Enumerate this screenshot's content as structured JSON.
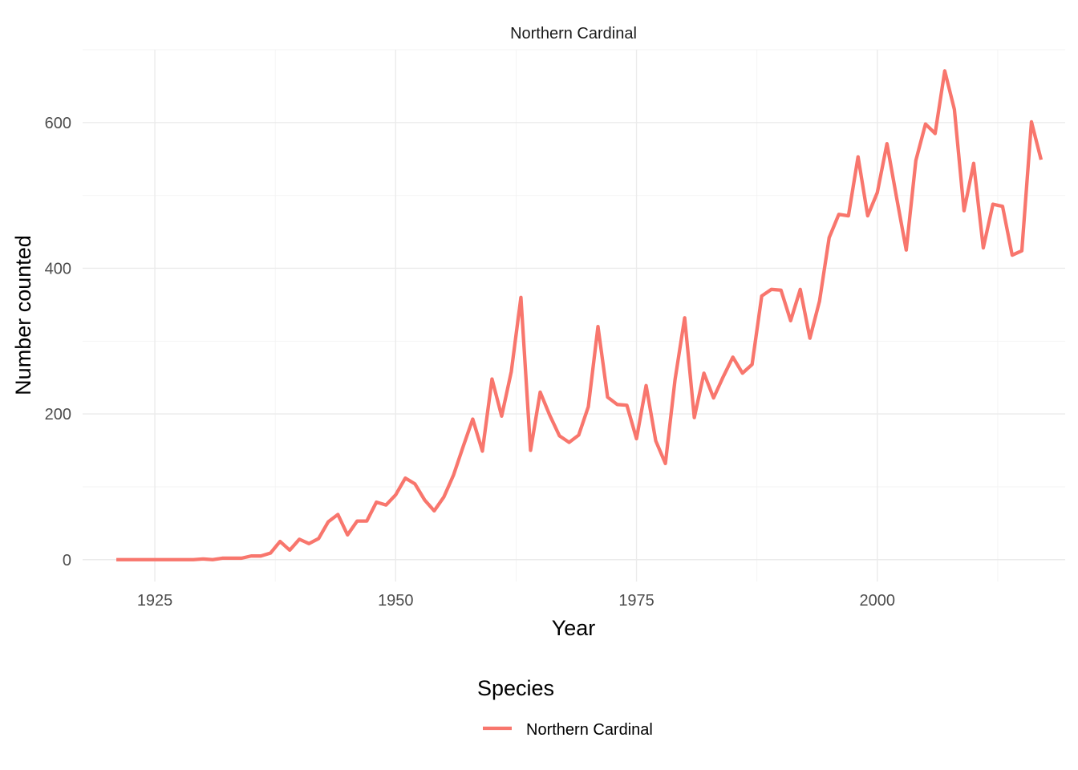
{
  "chart_data": {
    "type": "line",
    "facet_title": "Northern Cardinal",
    "xlabel": "Year",
    "ylabel": "Number counted",
    "xlim": [
      1917.5,
      2019.5
    ],
    "ylim": [
      -30,
      700
    ],
    "x_ticks": [
      1925,
      1950,
      1975,
      2000
    ],
    "y_ticks": [
      0,
      200,
      400,
      600
    ],
    "x_minor": [
      1937.5,
      1962.5,
      1987.5,
      2012.5
    ],
    "y_minor": [
      100,
      300,
      500,
      700
    ],
    "grid": true,
    "legend": {
      "title": "Species",
      "position": "bottom"
    },
    "colors": {
      "line": "#F8766D",
      "grid": "#EBEBEB",
      "text": "#4D4D4D"
    },
    "series": [
      {
        "name": "Northern Cardinal",
        "x": [
          1921,
          1922,
          1923,
          1924,
          1925,
          1926,
          1927,
          1928,
          1929,
          1930,
          1931,
          1932,
          1933,
          1934,
          1935,
          1936,
          1937,
          1938,
          1939,
          1940,
          1941,
          1942,
          1943,
          1944,
          1945,
          1946,
          1947,
          1948,
          1949,
          1950,
          1951,
          1952,
          1953,
          1954,
          1955,
          1956,
          1957,
          1958,
          1959,
          1960,
          1961,
          1962,
          1963,
          1964,
          1965,
          1966,
          1967,
          1968,
          1969,
          1970,
          1971,
          1972,
          1973,
          1974,
          1975,
          1976,
          1977,
          1978,
          1979,
          1980,
          1981,
          1982,
          1983,
          1984,
          1985,
          1986,
          1987,
          1988,
          1989,
          1990,
          1991,
          1992,
          1993,
          1994,
          1995,
          1996,
          1997,
          1998,
          1999,
          2000,
          2001,
          2002,
          2003,
          2004,
          2005,
          2006,
          2007,
          2008,
          2009,
          2010,
          2011,
          2012,
          2013,
          2014,
          2015,
          2016,
          2017
        ],
        "values": [
          0,
          0,
          0,
          0,
          0,
          0,
          0,
          0,
          0,
          1,
          0,
          2,
          2,
          2,
          5,
          5,
          9,
          25,
          13,
          28,
          22,
          29,
          52,
          62,
          34,
          53,
          53,
          79,
          75,
          89,
          112,
          104,
          82,
          67,
          86,
          116,
          155,
          193,
          149,
          248,
          197,
          258,
          360,
          150,
          230,
          198,
          170,
          161,
          171,
          210,
          320,
          223,
          213,
          212,
          166,
          239,
          163,
          132,
          247,
          332,
          195,
          256,
          222,
          251,
          278,
          256,
          268,
          362,
          371,
          370,
          328,
          371,
          304,
          355,
          442,
          474,
          472,
          553,
          472,
          504,
          571,
          497,
          425,
          548,
          598,
          585,
          671,
          618,
          479,
          544,
          428,
          488,
          485,
          418,
          424,
          601,
          549
        ]
      }
    ]
  }
}
